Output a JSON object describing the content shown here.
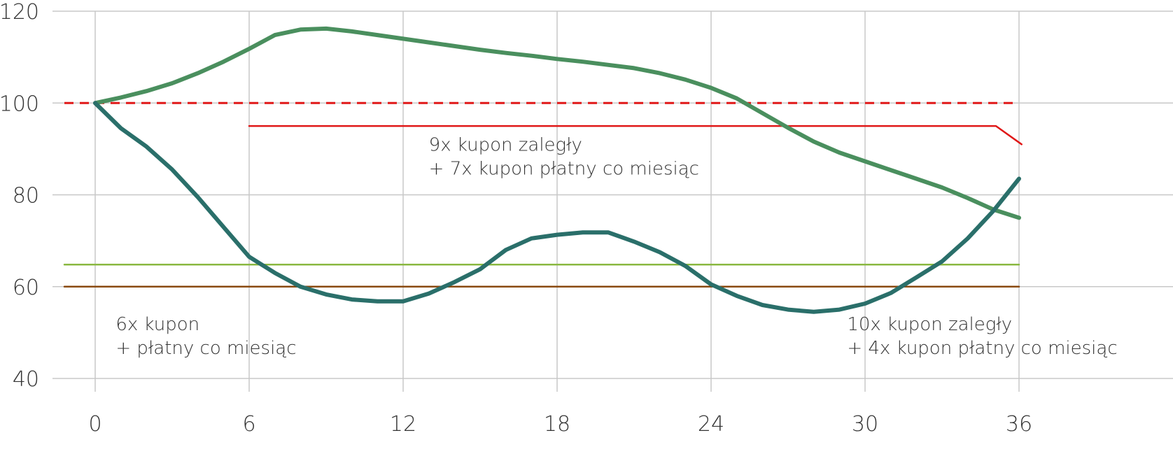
{
  "chart_data": {
    "type": "line",
    "xlim": [
      -2,
      43
    ],
    "ylim": [
      40,
      120
    ],
    "grid": true,
    "x_ticks": [
      "0",
      "6",
      "12",
      "18",
      "24",
      "30",
      "36"
    ],
    "y_ticks": [
      "40",
      "60",
      "80",
      "100",
      "120"
    ],
    "series": [
      {
        "color": "#4a8f5e",
        "width": 6,
        "style": "solid",
        "points": [
          [
            0,
            100
          ],
          [
            1,
            101.2
          ],
          [
            2,
            102.6
          ],
          [
            3,
            104.3
          ],
          [
            4,
            106.5
          ],
          [
            5,
            109.0
          ],
          [
            6,
            111.8
          ],
          [
            7,
            114.8
          ],
          [
            8,
            116.0
          ],
          [
            9,
            116.2
          ],
          [
            10,
            115.6
          ],
          [
            11,
            114.8
          ],
          [
            12,
            114.0
          ],
          [
            13,
            113.2
          ],
          [
            14,
            112.4
          ],
          [
            15,
            111.6
          ],
          [
            16,
            110.9
          ],
          [
            17,
            110.3
          ],
          [
            18,
            109.6
          ],
          [
            19,
            109.0
          ],
          [
            20,
            108.3
          ],
          [
            21,
            107.6
          ],
          [
            22,
            106.5
          ],
          [
            23,
            105.1
          ],
          [
            24,
            103.3
          ],
          [
            25,
            101.0
          ],
          [
            26,
            97.8
          ],
          [
            27,
            94.6
          ],
          [
            28,
            91.6
          ],
          [
            29,
            89.2
          ],
          [
            30,
            87.3
          ],
          [
            31,
            85.4
          ],
          [
            32,
            83.5
          ],
          [
            33,
            81.6
          ],
          [
            34,
            79.3
          ],
          [
            35,
            76.8
          ],
          [
            36,
            75.0
          ]
        ]
      },
      {
        "color": "#2a6f6a",
        "width": 6,
        "style": "solid",
        "points": [
          [
            0,
            100
          ],
          [
            1,
            94.5
          ],
          [
            2,
            90.5
          ],
          [
            3,
            85.5
          ],
          [
            4,
            79.5
          ],
          [
            5,
            73.0
          ],
          [
            6,
            66.5
          ],
          [
            7,
            63.0
          ],
          [
            8,
            60.0
          ],
          [
            9,
            58.3
          ],
          [
            10,
            57.2
          ],
          [
            11,
            56.8
          ],
          [
            12,
            56.8
          ],
          [
            13,
            58.5
          ],
          [
            14,
            61.0
          ],
          [
            15,
            63.8
          ],
          [
            16,
            68.0
          ],
          [
            17,
            70.5
          ],
          [
            18,
            71.3
          ],
          [
            19,
            71.8
          ],
          [
            20,
            71.8
          ],
          [
            21,
            69.8
          ],
          [
            22,
            67.5
          ],
          [
            23,
            64.5
          ],
          [
            24,
            60.5
          ],
          [
            25,
            58.0
          ],
          [
            26,
            56.0
          ],
          [
            27,
            55.0
          ],
          [
            28,
            54.5
          ],
          [
            29,
            55.0
          ],
          [
            30,
            56.3
          ],
          [
            31,
            58.6
          ],
          [
            32,
            62.0
          ],
          [
            33,
            65.5
          ],
          [
            34,
            70.5
          ],
          [
            35,
            76.5
          ],
          [
            36,
            83.5
          ]
        ]
      },
      {
        "color": "#e01818",
        "width": 3,
        "style": "dashed",
        "points": [
          [
            -1.2,
            100
          ],
          [
            36,
            100
          ]
        ]
      },
      {
        "color": "#e01818",
        "width": 2.5,
        "style": "solid",
        "points": [
          [
            6,
            95
          ],
          [
            35.1,
            95
          ],
          [
            36.1,
            91
          ]
        ]
      },
      {
        "color": "#8ab840",
        "width": 2.5,
        "style": "solid",
        "points": [
          [
            -1.2,
            64.8
          ],
          [
            36,
            64.8
          ]
        ]
      },
      {
        "color": "#8a4a10",
        "width": 2.5,
        "style": "solid",
        "points": [
          [
            -1.2,
            60
          ],
          [
            36,
            60
          ]
        ]
      }
    ],
    "annotations": [
      {
        "lines": [
          "9x kupon zaległy",
          "+ 7x kupon płatny co miesiąc"
        ],
        "x": 13,
        "y": 89.6
      },
      {
        "lines": [
          "6x kupon",
          "+ płatny co miesiąc"
        ],
        "x": 0.8,
        "y": 50.5
      },
      {
        "lines": [
          "10x kupon zaległy",
          "+ 4x kupon płatny co miesiąc"
        ],
        "x": 29.3,
        "y": 50.5
      }
    ]
  }
}
